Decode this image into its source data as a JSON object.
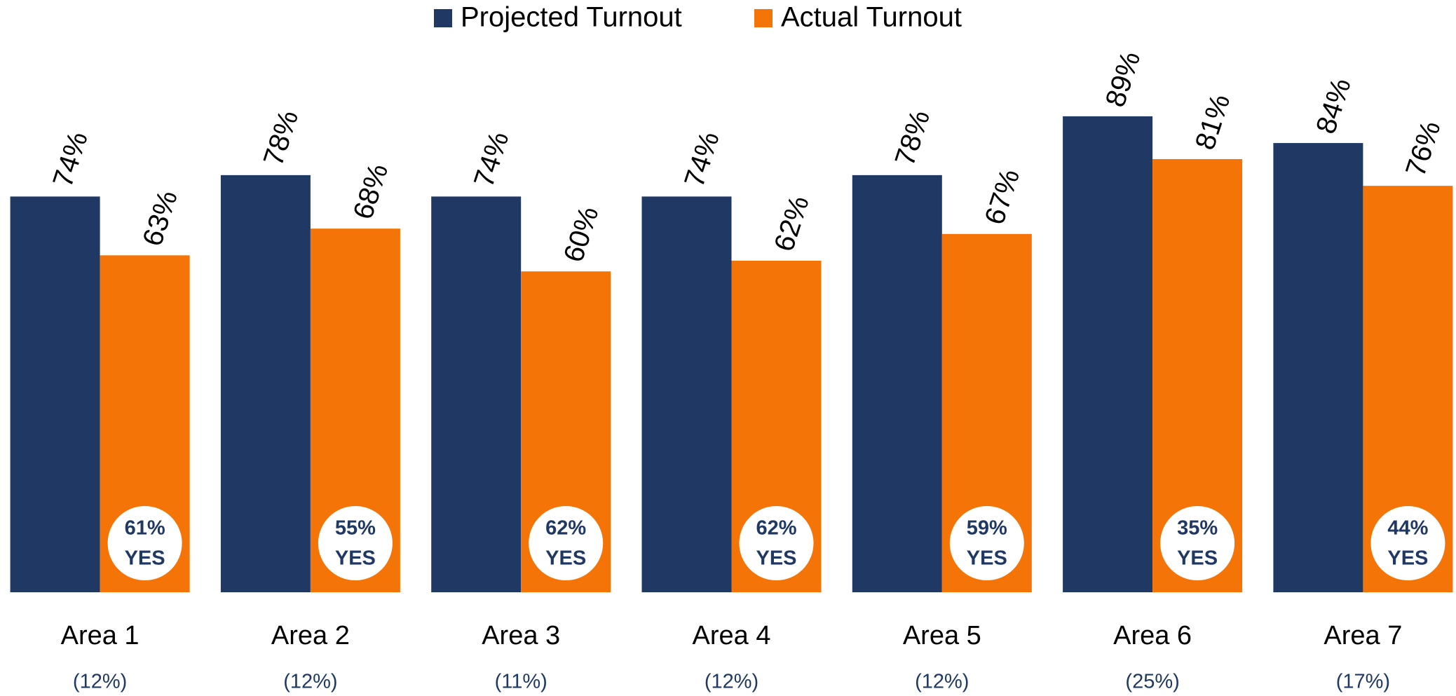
{
  "chart_data": {
    "type": "bar",
    "categories": [
      "Area 1",
      "Area 2",
      "Area 3",
      "Area 4",
      "Area 5",
      "Area 6",
      "Area 7"
    ],
    "category_shares": [
      "(12%)",
      "(12%)",
      "(11%)",
      "(12%)",
      "(12%)",
      "(25%)",
      "(17%)"
    ],
    "series": [
      {
        "name": "Projected Turnout",
        "color": "#1f3864",
        "values": [
          74,
          78,
          74,
          74,
          78,
          89,
          84
        ],
        "value_labels": [
          "74%",
          "78%",
          "74%",
          "74%",
          "78%",
          "89%",
          "84%"
        ]
      },
      {
        "name": "Actual Turnout",
        "color": "#f57407",
        "values": [
          63,
          68,
          60,
          62,
          67,
          81,
          76
        ],
        "value_labels": [
          "63%",
          "68%",
          "60%",
          "62%",
          "67%",
          "81%",
          "76%"
        ]
      }
    ],
    "yes_labels": [
      "61%",
      "55%",
      "62%",
      "62%",
      "59%",
      "35%",
      "44%"
    ],
    "yes_text": "YES",
    "ylim": [
      0,
      100
    ],
    "legend": "top"
  }
}
